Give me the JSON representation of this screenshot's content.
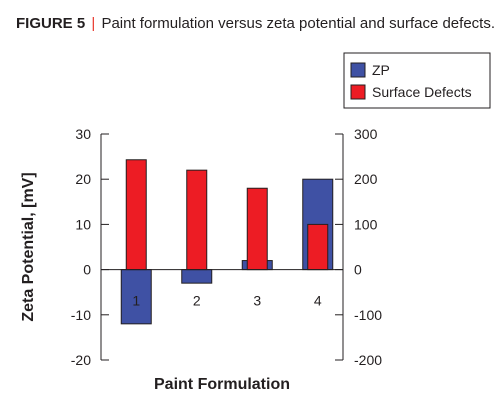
{
  "figure": {
    "label": "FIGURE 5",
    "separator": "|",
    "caption": "Paint formulation versus zeta potential and surface defects."
  },
  "chart_data": {
    "type": "bar",
    "categories": [
      "1",
      "2",
      "3",
      "4"
    ],
    "series": [
      {
        "name": "ZP",
        "axis": "left",
        "values": [
          -12,
          -3,
          2,
          20
        ],
        "color": "#3f51a4"
      },
      {
        "name": "Surface Defects",
        "axis": "right",
        "values": [
          243,
          220,
          180,
          100
        ],
        "color": "#ed1c24"
      }
    ],
    "xlabel": "Paint Formulation",
    "ylabel": "Zeta Potential, [mV]",
    "ylim": [
      -20,
      30
    ],
    "yticks": [
      "30",
      "20",
      "10",
      "0",
      "-10",
      "-20"
    ],
    "y2lim": [
      -200,
      300
    ],
    "y2ticks": [
      "300",
      "200",
      "100",
      "0",
      "-100",
      "-200"
    ],
    "grid": false,
    "legend": "top-right"
  }
}
